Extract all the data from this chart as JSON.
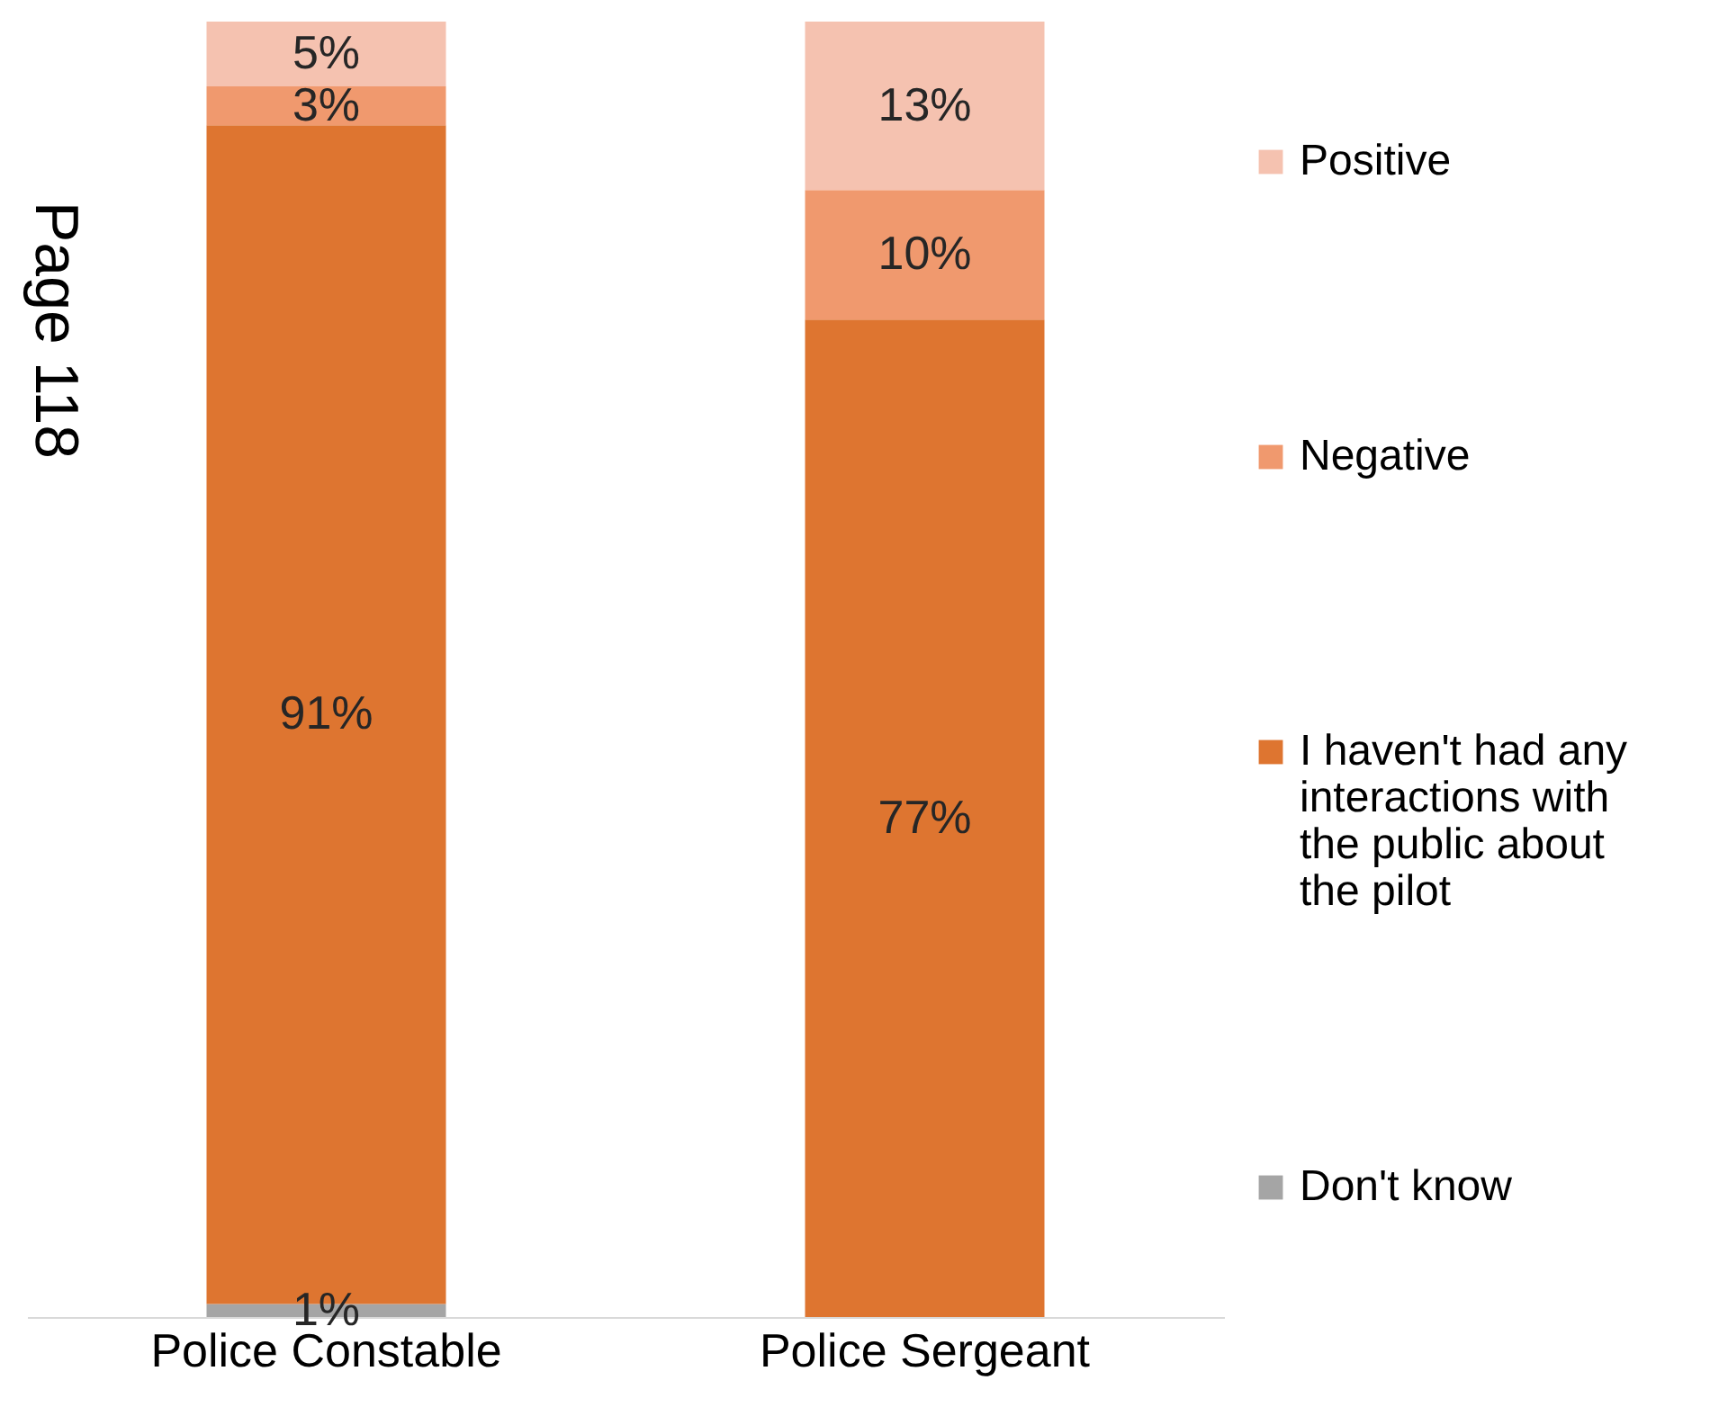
{
  "chart_data": {
    "type": "bar",
    "stacked": true,
    "categories": [
      "Police Constable",
      "Police Sergeant"
    ],
    "series": [
      {
        "name": "Don't know",
        "color": "#a5a5a5",
        "values": [
          1,
          null
        ],
        "value_labels": [
          "1%",
          null
        ]
      },
      {
        "name": "I haven't had any interactions with the public about the pilot",
        "color": "#de7530",
        "values": [
          91,
          77
        ],
        "value_labels": [
          "91%",
          "77%"
        ]
      },
      {
        "name": "Negative",
        "color": "#f0996e",
        "values": [
          3,
          10
        ],
        "value_labels": [
          "3%",
          "10%"
        ]
      },
      {
        "name": "Positive",
        "color": "#f5c2b0",
        "values": [
          5,
          13
        ],
        "value_labels": [
          "5%",
          "13%"
        ]
      }
    ],
    "legend": "right",
    "grid": false,
    "annotations": [
      "Page 118"
    ]
  }
}
